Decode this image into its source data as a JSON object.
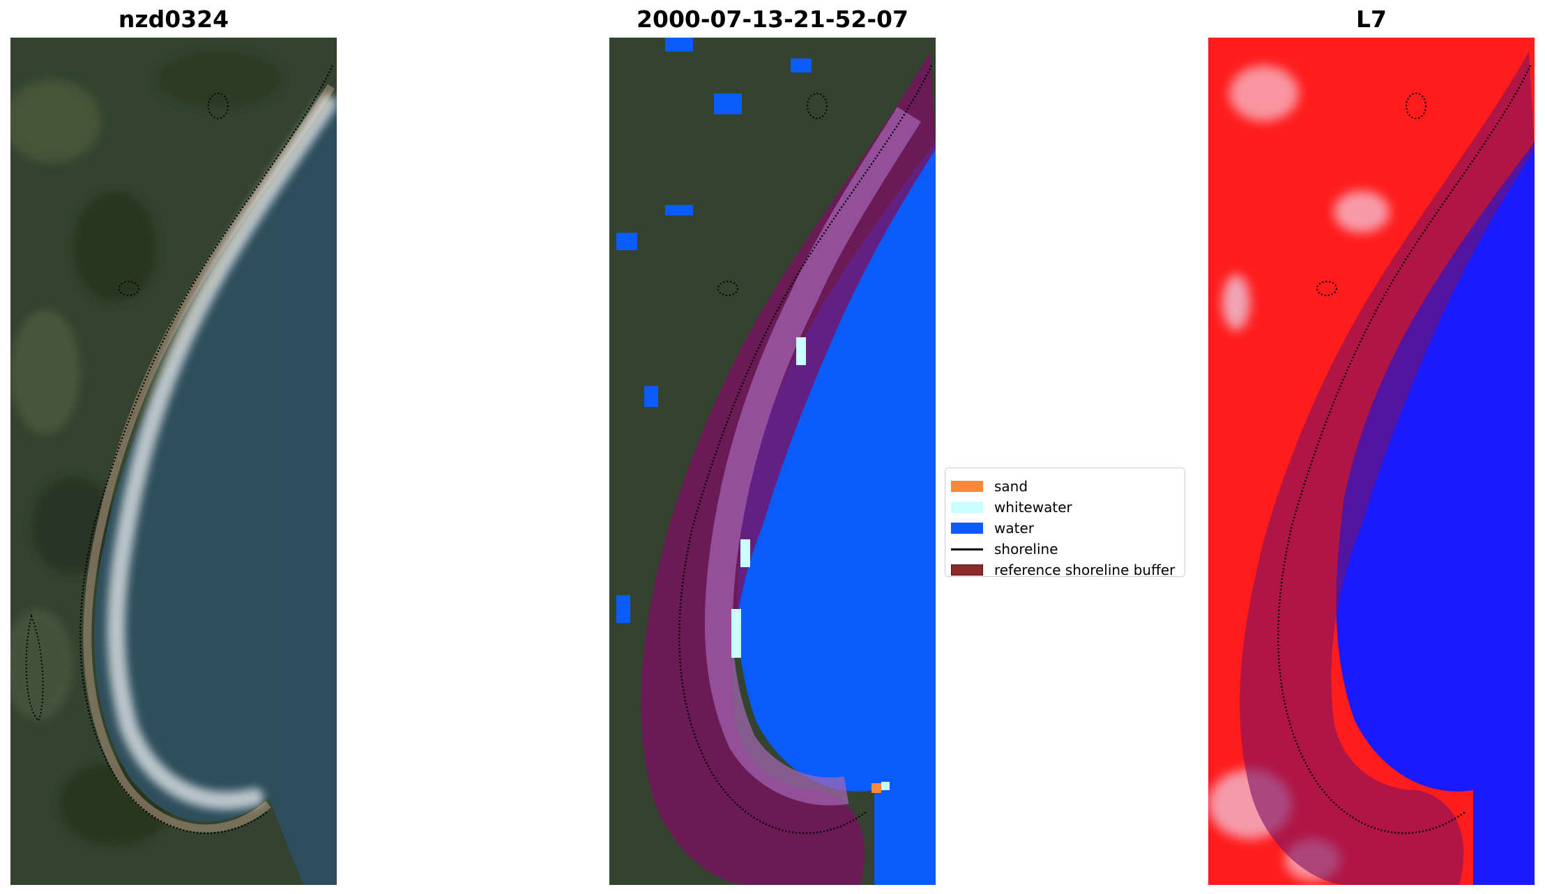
{
  "panels": [
    {
      "title": "nzd0324",
      "kind": "rgb-satellite"
    },
    {
      "title": "2000-07-13-21-52-07",
      "kind": "classified"
    },
    {
      "title": "L7",
      "kind": "index-red-blue"
    }
  ],
  "legend": {
    "items": [
      {
        "label": "sand",
        "color": "#f98839"
      },
      {
        "label": "whitewater",
        "color": "#c8fefe"
      },
      {
        "label": "water",
        "color": "#0a5cfa"
      },
      {
        "label": "shoreline",
        "color": "#000000"
      },
      {
        "label": "reference shoreline buffer",
        "color": "#8b2a2a"
      }
    ]
  },
  "colors": {
    "buffer_overlay": "#7a1060",
    "land_dark": "#2d3a2a",
    "sea_rgb": "#2d4f5e",
    "index_red": "#ff2020",
    "index_blue": "#1a1aff"
  }
}
